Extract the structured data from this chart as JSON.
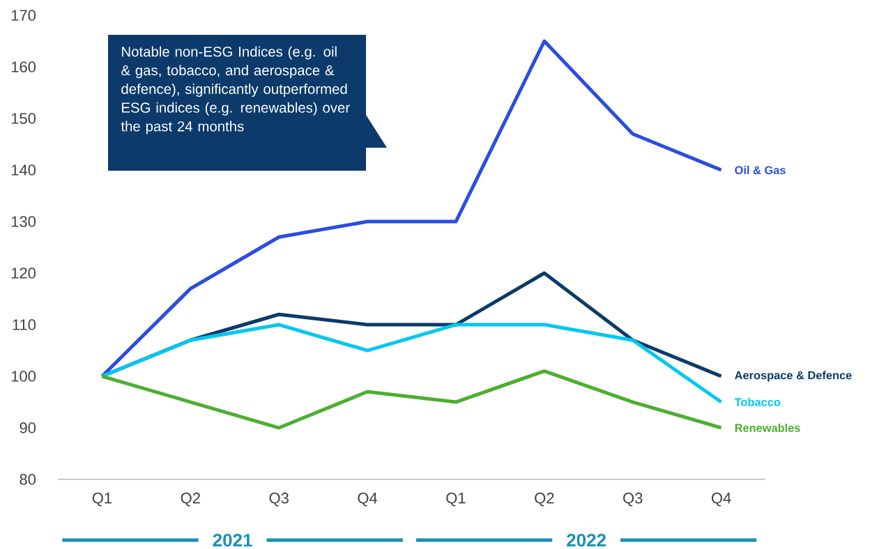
{
  "chart_data": {
    "type": "line",
    "categories": [
      "Q1",
      "Q2",
      "Q3",
      "Q4",
      "Q1",
      "Q2",
      "Q3",
      "Q4"
    ],
    "series": [
      {
        "name": "Oil & Gas",
        "color": "#2b4de0",
        "values": [
          100,
          117,
          127,
          130,
          130,
          165,
          147,
          140
        ]
      },
      {
        "name": "Aerospace & Defence",
        "color": "#0b3a6b",
        "values": [
          100,
          107,
          112,
          110,
          110,
          120,
          107,
          100
        ]
      },
      {
        "name": "Tobacco",
        "color": "#00c8f0",
        "values": [
          100,
          107,
          110,
          105,
          110,
          110,
          107,
          95
        ]
      },
      {
        "name": "Renewables",
        "color": "#4caf30",
        "values": [
          100,
          95,
          90,
          97,
          95,
          101,
          95,
          90
        ]
      }
    ],
    "ylim": [
      80,
      170
    ],
    "yticks": [
      80,
      90,
      100,
      110,
      120,
      130,
      140,
      150,
      160,
      170
    ],
    "grid": false,
    "legend": false,
    "marker": "none",
    "line_style": "solid",
    "annotations": [
      "Notable non-ESG Indices (e.g. oil & gas, tobacco, and aerospace & defence), significantly outperformed ESG indices (e.g. renewables) over the past 24 months",
      "2021",
      "2022"
    ]
  }
}
